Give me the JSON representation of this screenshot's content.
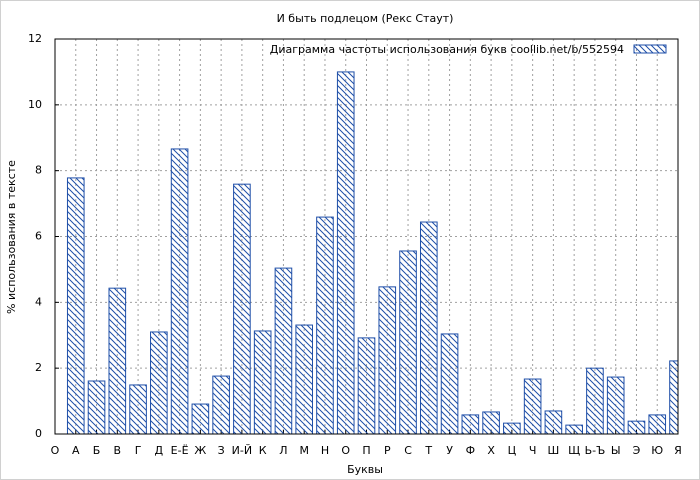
{
  "chart_data": {
    "type": "bar",
    "title": "И быть подлецом (Рекс Стаут)",
    "x_label": "Буквы",
    "y_label": "% использования в тексте",
    "x": [
      1,
      2,
      3,
      4,
      5,
      6,
      7,
      8,
      9,
      10,
      11,
      12,
      13,
      14,
      15,
      16,
      17,
      18,
      19,
      20,
      21,
      22,
      23,
      24,
      25,
      26,
      27,
      28,
      29,
      30
    ],
    "series": [
      {
        "name": "Диаграмма частоты использования букв  coollib.net/b/552594",
        "color": "#1f4fa8",
        "values": [
          7.78,
          1.61,
          4.43,
          1.49,
          3.1,
          8.66,
          0.91,
          1.76,
          7.59,
          3.13,
          5.04,
          3.31,
          6.59,
          11.0,
          2.92,
          4.47,
          5.56,
          6.44,
          3.04,
          0.58,
          0.67,
          0.33,
          1.67,
          0.7,
          0.27,
          2.0,
          1.73,
          0.39,
          0.58,
          2.22
        ]
      }
    ],
    "xlim": [
      0,
      30
    ],
    "xticks": [
      {
        "value": 0,
        "label": "О"
      },
      {
        "value": 1,
        "label": "А"
      },
      {
        "value": 2,
        "label": "Б"
      },
      {
        "value": 3,
        "label": "В"
      },
      {
        "value": 4,
        "label": "Г"
      },
      {
        "value": 5,
        "label": "Д"
      },
      {
        "value": 6,
        "label": "Е-Ё"
      },
      {
        "value": 7,
        "label": "Ж"
      },
      {
        "value": 8,
        "label": "З"
      },
      {
        "value": 9,
        "label": "И-Й"
      },
      {
        "value": 10,
        "label": "К"
      },
      {
        "value": 11,
        "label": "Л"
      },
      {
        "value": 12,
        "label": "М"
      },
      {
        "value": 13,
        "label": "Н"
      },
      {
        "value": 14,
        "label": "О"
      },
      {
        "value": 15,
        "label": "П"
      },
      {
        "value": 16,
        "label": "Р"
      },
      {
        "value": 17,
        "label": "С"
      },
      {
        "value": 18,
        "label": "Т"
      },
      {
        "value": 19,
        "label": "У"
      },
      {
        "value": 20,
        "label": "Ф"
      },
      {
        "value": 21,
        "label": "Х"
      },
      {
        "value": 22,
        "label": "Ц"
      },
      {
        "value": 23,
        "label": "Ч"
      },
      {
        "value": 24,
        "label": "Ш"
      },
      {
        "value": 25,
        "label": "Щ"
      },
      {
        "value": 26,
        "label": "Ь-Ъ"
      },
      {
        "value": 27,
        "label": "Ы"
      },
      {
        "value": 28,
        "label": "Э"
      },
      {
        "value": 29,
        "label": "Ю"
      },
      {
        "value": 30,
        "label": "Я"
      }
    ],
    "ylim": [
      0,
      12
    ],
    "yticks": [
      0,
      2,
      4,
      6,
      8,
      10,
      12
    ],
    "grid": true,
    "legend": "top-right"
  }
}
